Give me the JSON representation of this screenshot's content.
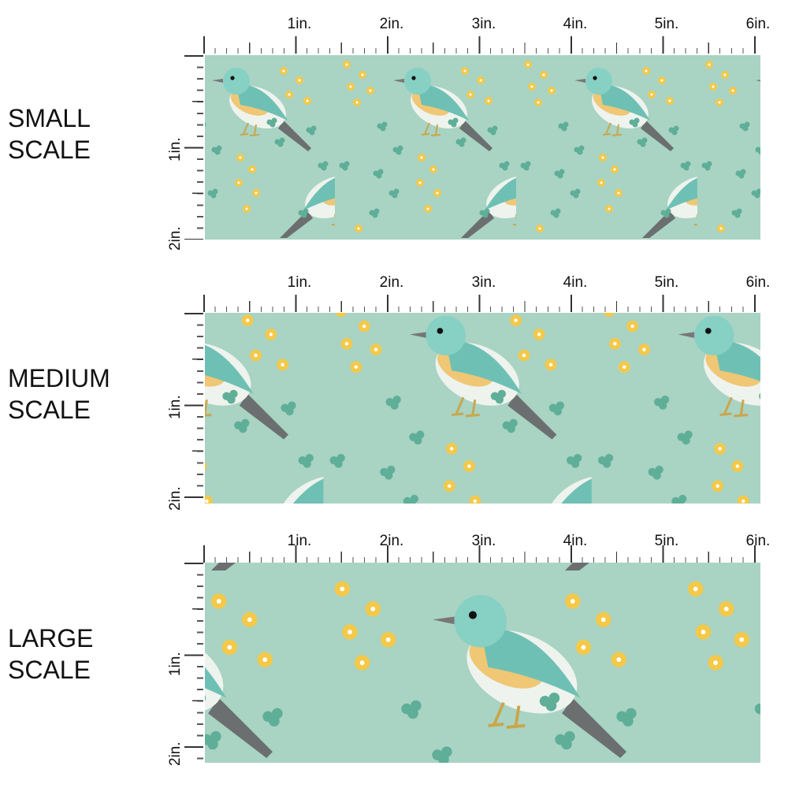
{
  "colors": {
    "background": "#a9d3c3",
    "flower_yellow": "#f3c94a",
    "leaf_green": "#5fae98",
    "bird_teal": "#7cc8bd",
    "bird_belly": "#f0c060"
  },
  "ruler": {
    "h_labels": [
      "1in.",
      "2in.",
      "3in.",
      "4in.",
      "5in.",
      "6in."
    ],
    "v_labels": [
      "1in.",
      "2in."
    ]
  },
  "sections": [
    {
      "label_line1": "SMALL",
      "label_line2": "SCALE"
    },
    {
      "label_line1": "MEDIUM",
      "label_line2": "SCALE"
    },
    {
      "label_line1": "LARGE",
      "label_line2": "SCALE"
    }
  ]
}
